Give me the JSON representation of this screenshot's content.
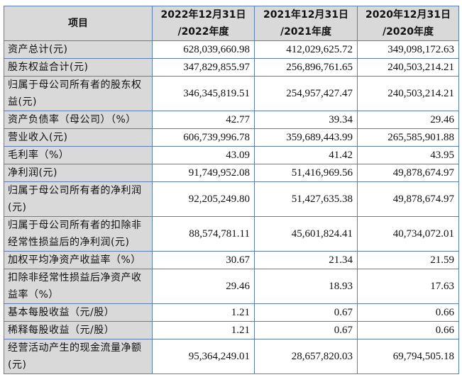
{
  "header": {
    "item": "项目",
    "columns": [
      [
        "2022年12月31日",
        "/2022年度"
      ],
      [
        "2021年12月31日",
        "/2021年度"
      ],
      [
        "2020年12月31日",
        "/2020年度"
      ]
    ]
  },
  "rows": [
    {
      "label": "资产总计(元)",
      "values": [
        "628,039,660.98",
        "412,029,625.72",
        "349,098,172.63"
      ]
    },
    {
      "label": "股东权益合计(元)",
      "values": [
        "347,829,855.97",
        "256,896,761.65",
        "240,503,214.21"
      ]
    },
    {
      "label": "归属于母公司所有者的股东权益(元)",
      "values": [
        "346,345,819.51",
        "254,957,427.47",
        "240,503,214.21"
      ]
    },
    {
      "label": "资产负债率（母公司）（%）",
      "values": [
        "42.77",
        "39.34",
        "29.46"
      ]
    },
    {
      "label": "营业收入(元)",
      "values": [
        "606,739,996.78",
        "359,689,443.99",
        "265,585,901.88"
      ]
    },
    {
      "label": "毛利率（%）",
      "values": [
        "43.09",
        "41.42",
        "43.95"
      ]
    },
    {
      "label": "净利润(元)",
      "values": [
        "91,749,952.08",
        "51,416,969.56",
        "49,878,674.97"
      ]
    },
    {
      "label": "归属于母公司所有者的净利润(元)",
      "values": [
        "92,205,249.80",
        "51,427,635.38",
        "49,878,674.97"
      ]
    },
    {
      "label": "归属于母公司所有者的扣除非经常性损益后的净利润(元)",
      "values": [
        "88,574,781.11",
        "45,601,824.41",
        "40,734,072.01"
      ]
    },
    {
      "label": "加权平均净资产收益率（%）",
      "values": [
        "30.67",
        "21.34",
        "21.59"
      ]
    },
    {
      "label": "扣除非经常性损益后净资产收益率（%）",
      "values": [
        "29.46",
        "18.93",
        "17.63"
      ]
    },
    {
      "label": "基本每股收益（元/股）",
      "values": [
        "1.21",
        "0.67",
        "0.66"
      ]
    },
    {
      "label": "稀释每股收益（元/股）",
      "values": [
        "1.21",
        "0.67",
        "0.66"
      ]
    },
    {
      "label": "经营活动产生的现金流量净额(元)",
      "values": [
        "95,364,249.01",
        "28,657,820.03",
        "69,794,505.18"
      ]
    }
  ]
}
